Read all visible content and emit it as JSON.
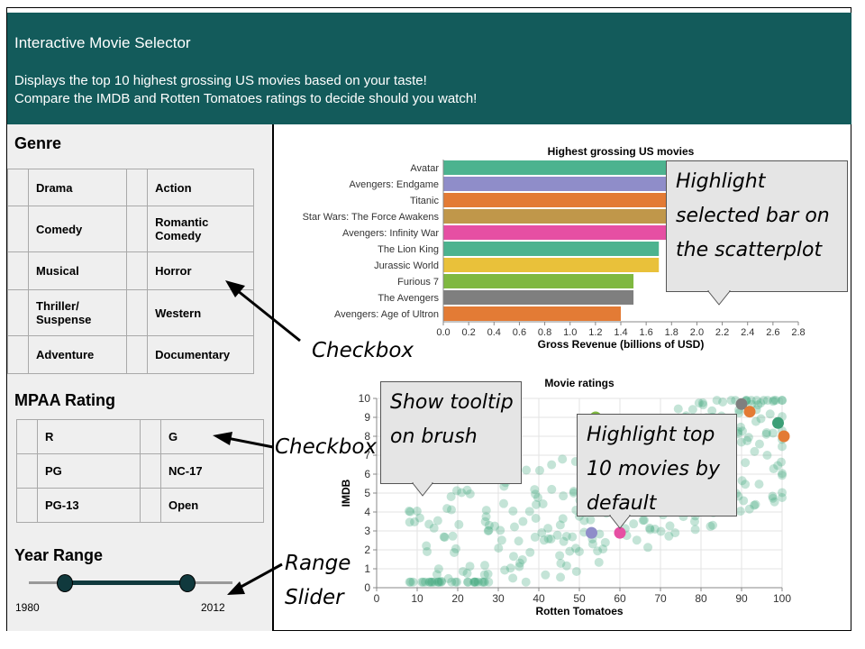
{
  "header": {
    "title": "Interactive Movie Selector",
    "desc_line1": "Displays the top 10 highest grossing US movies based on your taste!",
    "desc_line2": "Compare the IMDB and Rotten Tomatoes ratings to decide should you watch!"
  },
  "sidebar": {
    "genre_title": "Genre",
    "genres": [
      "Drama",
      "Action",
      "Comedy",
      "Romantic Comedy",
      "Musical",
      "Horror",
      "Thriller/ Suspense",
      "Western",
      "Adventure",
      "Documentary"
    ],
    "mpaa_title": "MPAA Rating",
    "ratings": [
      "R",
      "G",
      "PG",
      "NC-17",
      "PG-13",
      "Open"
    ],
    "year_title": "Year Range",
    "year_min": "1980",
    "year_max": "2012"
  },
  "annotations": {
    "checkbox1": "Checkbox",
    "checkbox2": "Checkbox",
    "range_slider": [
      "Range",
      "Slider"
    ],
    "highlight_bar": [
      "Highlight",
      "selected bar on",
      "the scatterplot"
    ],
    "tooltip": [
      "Show tooltip",
      "on brush"
    ],
    "highlight_top": [
      "Highlight top",
      "10 movies by",
      "default"
    ]
  },
  "chart_data": [
    {
      "type": "bar",
      "title": "Highest grossing US movies",
      "xlabel": "Gross Revenue (billions of USD)",
      "ylabel": "",
      "xlim": [
        0,
        2.8
      ],
      "xticks": [
        "0.0",
        "0.2",
        "0.4",
        "0.6",
        "0.8",
        "1.0",
        "1.2",
        "1.4",
        "1.6",
        "1.8",
        "2.0",
        "2.2",
        "2.4",
        "2.6",
        "2.8"
      ],
      "categories": [
        "Avatar",
        "Avengers: Endgame",
        "Titanic",
        "Star Wars: The Force Awakens",
        "Avengers: Infinity War",
        "The Lion King",
        "Jurassic World",
        "Furious 7",
        "The Avengers",
        "Avengers: Age of Ultron"
      ],
      "values": [
        2.8,
        2.8,
        2.2,
        2.1,
        2.0,
        1.7,
        1.7,
        1.5,
        1.5,
        1.4
      ],
      "colors": [
        "#4cb38f",
        "#8f8dc9",
        "#e37b35",
        "#c0974a",
        "#e64fa3",
        "#4cb38f",
        "#e9c13a",
        "#7fb840",
        "#7f7f7f",
        "#e37b35"
      ],
      "grid": false
    },
    {
      "type": "scatter",
      "title": "Movie ratings",
      "xlabel": "Rotten Tomatoes",
      "ylabel": "IMDB",
      "xlim": [
        0,
        100
      ],
      "ylim": [
        0,
        10
      ],
      "xticks": [
        "0",
        "10",
        "20",
        "30",
        "40",
        "50",
        "60",
        "70",
        "80",
        "90",
        "100"
      ],
      "yticks": [
        "0",
        "1",
        "2",
        "3",
        "4",
        "5",
        "6",
        "7",
        "8",
        "9",
        "10"
      ],
      "grid": true,
      "highlighted": [
        {
          "x": 34,
          "y": 6.9,
          "color": "#e9b449"
        },
        {
          "x": 53,
          "y": 2.9,
          "color": "#8f8dc9"
        },
        {
          "x": 60,
          "y": 2.9,
          "color": "#e64fa3"
        },
        {
          "x": 90,
          "y": 9.7,
          "color": "#7f7f7f"
        },
        {
          "x": 92,
          "y": 9.3,
          "color": "#e37b35"
        },
        {
          "x": 101,
          "y": 8.0,
          "color": "#e37b35"
        },
        {
          "x": 99,
          "y": 8.7,
          "color": "#3c9f77"
        },
        {
          "x": 54,
          "y": 9.0,
          "color": "#7fb840"
        },
        {
          "x": 63,
          "y": 8.6,
          "color": "#c0974a"
        }
      ]
    }
  ]
}
